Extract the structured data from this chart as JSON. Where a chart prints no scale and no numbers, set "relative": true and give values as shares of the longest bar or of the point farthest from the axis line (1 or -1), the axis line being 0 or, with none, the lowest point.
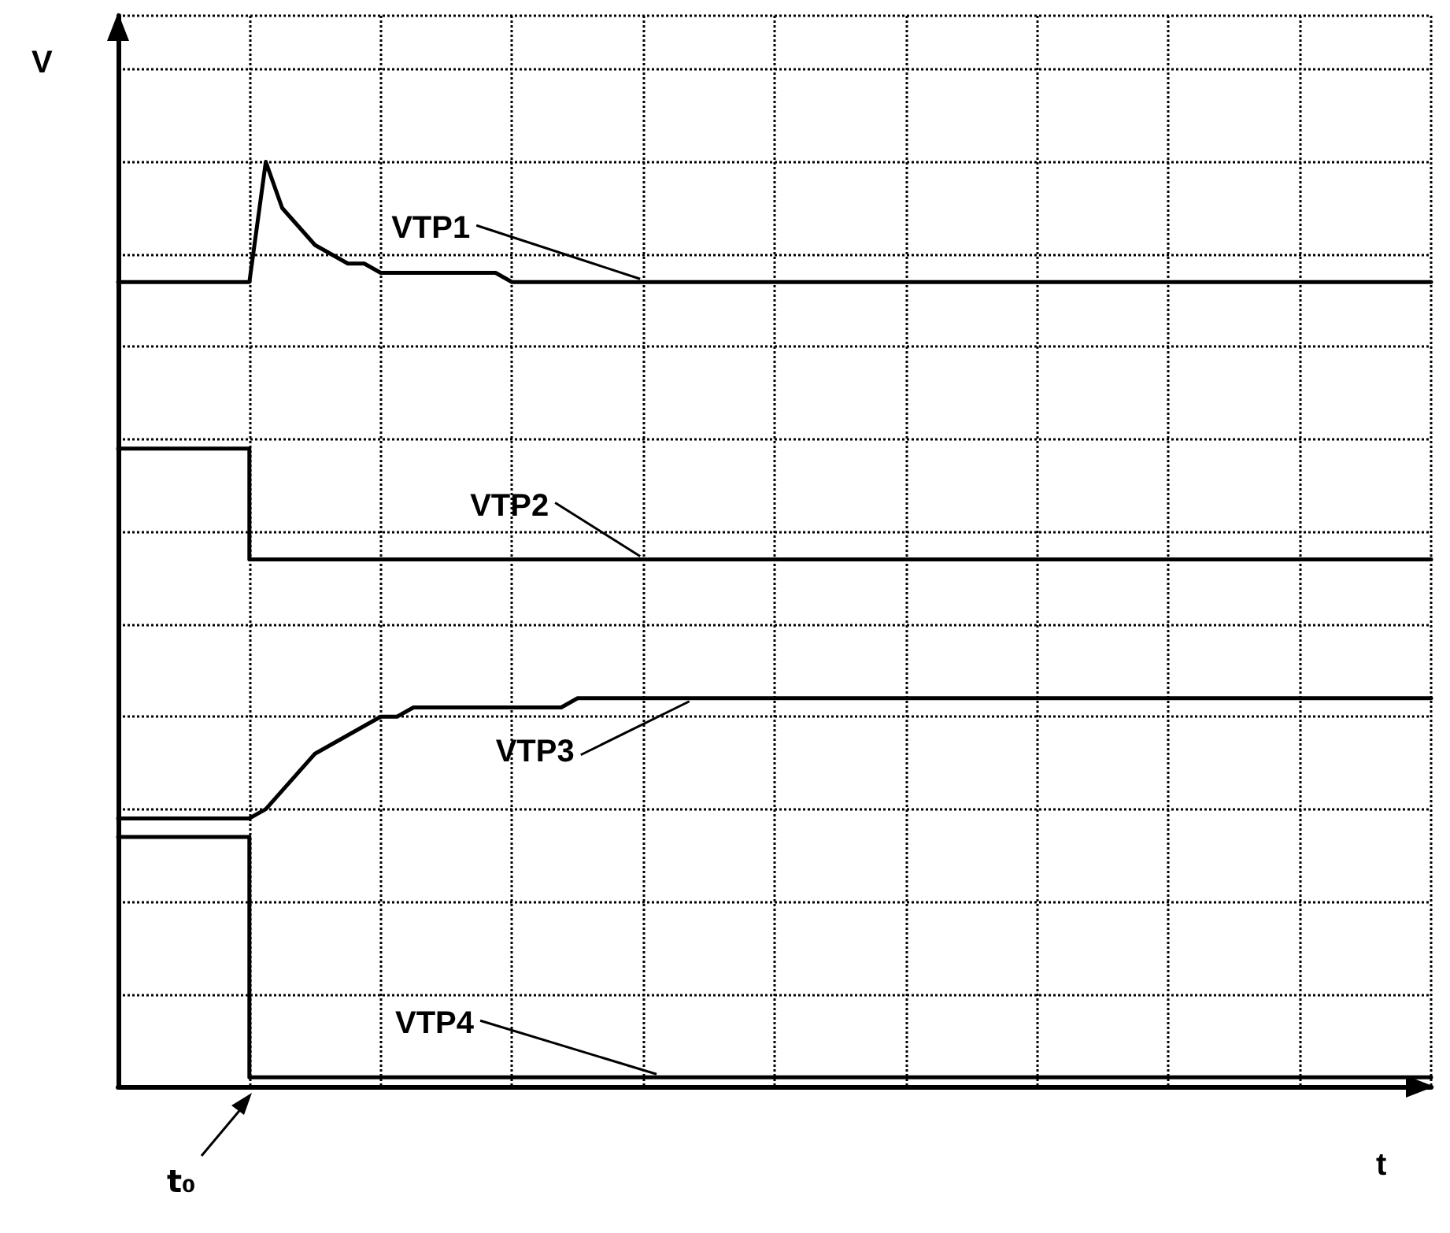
{
  "chart_data": {
    "type": "line",
    "relative": true,
    "xlabel": "t",
    "ylabel": "V",
    "grid": true,
    "legend": false,
    "marker": "none",
    "annotations": [
      "t₀"
    ],
    "categories": [
      null,
      null,
      null,
      null,
      null,
      null,
      null,
      null,
      null,
      null,
      null,
      null,
      null,
      null,
      null,
      null,
      null,
      null,
      null,
      null,
      null,
      null,
      null,
      null,
      null,
      null,
      null,
      null,
      null,
      null,
      null,
      null,
      null,
      null,
      null,
      null,
      null,
      null,
      null,
      null,
      null,
      null,
      null,
      null,
      null,
      null,
      null,
      null,
      null,
      null,
      null,
      null,
      null,
      null,
      null,
      null,
      null,
      null,
      null,
      null,
      null,
      null,
      null,
      null,
      null,
      null,
      null,
      null,
      null,
      null,
      null,
      null,
      null,
      null,
      null,
      null,
      null,
      null,
      null,
      null,
      null
    ],
    "series": [
      {
        "name": "VTP1",
        "color": "#000000",
        "values": [
          0.87,
          0.87,
          0.87,
          0.87,
          0.87,
          0.87,
          0.87,
          0.87,
          0.87,
          1,
          0.95,
          0.93,
          0.91,
          0.9,
          0.89,
          0.89,
          0.88,
          0.88,
          0.88,
          0.88,
          0.88,
          0.88,
          0.88,
          0.88,
          0.87,
          0.87,
          0.87,
          0.87,
          0.87,
          0.87,
          0.87,
          0.87,
          0.87,
          0.87,
          0.87,
          0.87,
          0.87,
          0.87,
          0.87,
          0.87,
          0.87,
          0.87,
          0.87,
          0.87,
          0.87,
          0.87,
          0.87,
          0.87,
          0.87,
          0.87,
          0.87,
          0.87,
          0.87,
          0.87,
          0.87,
          0.87,
          0.87,
          0.87,
          0.87,
          0.87,
          0.87,
          0.87,
          0.87,
          0.87,
          0.87,
          0.87,
          0.87,
          0.87,
          0.87,
          0.87,
          0.87,
          0.87,
          0.87,
          0.87,
          0.87,
          0.87,
          0.87,
          0.87,
          0.87,
          0.87,
          0.87
        ]
      },
      {
        "name": "VTP2",
        "type": "step",
        "color": "#000000",
        "values": [
          0.69,
          0.69,
          0.69,
          0.69,
          0.69,
          0.69,
          0.69,
          0.69,
          0.69,
          0.57,
          0.57,
          0.57,
          0.57,
          0.57,
          0.57,
          0.57,
          0.57,
          0.57,
          0.57,
          0.57,
          0.57,
          0.57,
          0.57,
          0.57,
          0.57,
          0.57,
          0.57,
          0.57,
          0.57,
          0.57,
          0.57,
          0.57,
          0.57,
          0.57,
          0.57,
          0.57,
          0.57,
          0.57,
          0.57,
          0.57,
          0.57,
          0.57,
          0.57,
          0.57,
          0.57,
          0.57,
          0.57,
          0.57,
          0.57,
          0.57,
          0.57,
          0.57,
          0.57,
          0.57,
          0.57,
          0.57,
          0.57,
          0.57,
          0.57,
          0.57,
          0.57,
          0.57,
          0.57,
          0.57,
          0.57,
          0.57,
          0.57,
          0.57,
          0.57,
          0.57,
          0.57,
          0.57,
          0.57,
          0.57,
          0.57,
          0.57,
          0.57,
          0.57,
          0.57,
          0.57,
          0.57
        ]
      },
      {
        "name": "VTP3",
        "color": "#000000",
        "values": [
          0.29,
          0.29,
          0.29,
          0.29,
          0.29,
          0.29,
          0.29,
          0.29,
          0.29,
          0.3,
          0.32,
          0.34,
          0.36,
          0.37,
          0.38,
          0.39,
          0.4,
          0.4,
          0.41,
          0.41,
          0.41,
          0.41,
          0.41,
          0.41,
          0.41,
          0.41,
          0.41,
          0.41,
          0.42,
          0.42,
          0.42,
          0.42,
          0.42,
          0.42,
          0.42,
          0.42,
          0.42,
          0.42,
          0.42,
          0.42,
          0.42,
          0.42,
          0.42,
          0.42,
          0.42,
          0.42,
          0.42,
          0.42,
          0.42,
          0.42,
          0.42,
          0.42,
          0.42,
          0.42,
          0.42,
          0.42,
          0.42,
          0.42,
          0.42,
          0.42,
          0.42,
          0.42,
          0.42,
          0.42,
          0.42,
          0.42,
          0.42,
          0.42,
          0.42,
          0.42,
          0.42,
          0.42,
          0.42,
          0.42,
          0.42,
          0.42,
          0.42,
          0.42,
          0.42,
          0.42,
          0.42
        ]
      },
      {
        "name": "VTP4",
        "type": "step",
        "color": "#000000",
        "values": [
          0.27,
          0.27,
          0.27,
          0.27,
          0.27,
          0.27,
          0.27,
          0.27,
          0.27,
          0.01,
          0.01,
          0.01,
          0.01,
          0.01,
          0.01,
          0.01,
          0.01,
          0.01,
          0.01,
          0.01,
          0.01,
          0.01,
          0.01,
          0.01,
          0.01,
          0.01,
          0.01,
          0.01,
          0.01,
          0.01,
          0.01,
          0.01,
          0.01,
          0.01,
          0.01,
          0.01,
          0.01,
          0.01,
          0.01,
          0.01,
          0.01,
          0.01,
          0.01,
          0.01,
          0.01,
          0.01,
          0.01,
          0.01,
          0.01,
          0.01,
          0.01,
          0.01,
          0.01,
          0.01,
          0.01,
          0.01,
          0.01,
          0.01,
          0.01,
          0.01,
          0.01,
          0.01,
          0.01,
          0.01,
          0.01,
          0.01,
          0.01,
          0.01,
          0.01,
          0.01,
          0.01,
          0.01,
          0.01,
          0.01,
          0.01,
          0.01,
          0.01,
          0.01,
          0.01,
          0.01,
          0.01
        ]
      }
    ]
  }
}
